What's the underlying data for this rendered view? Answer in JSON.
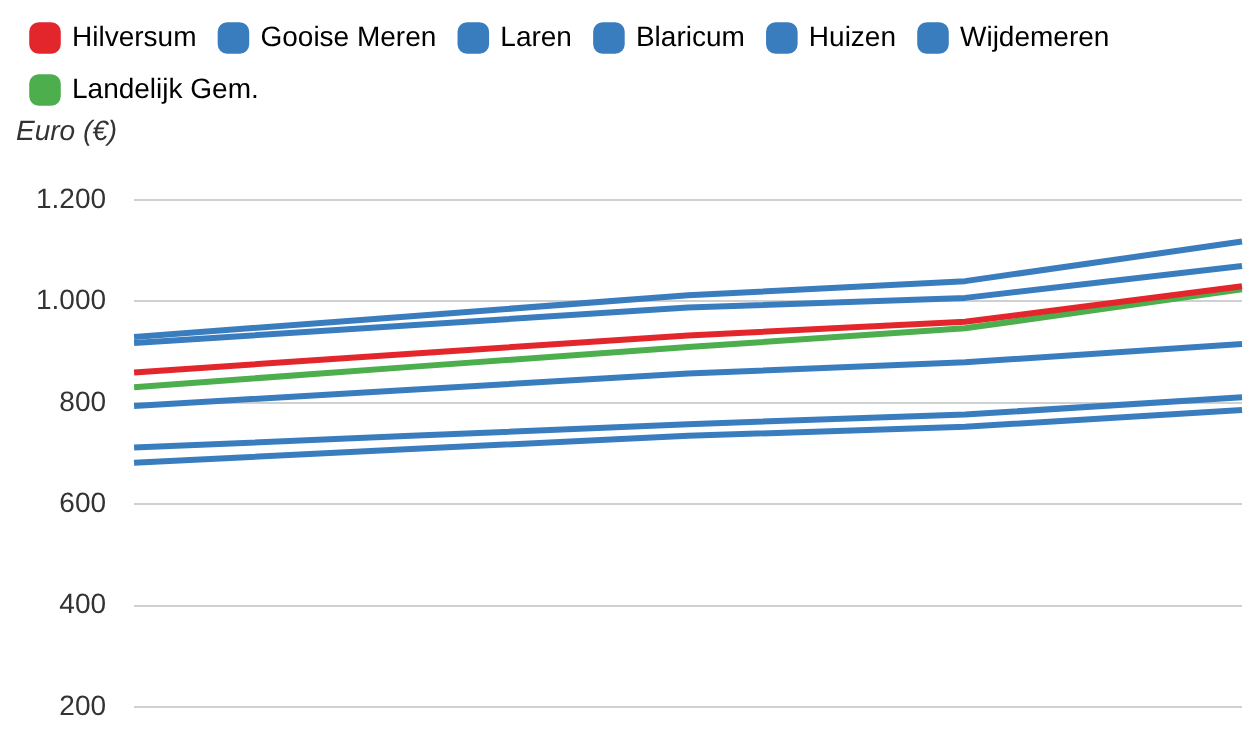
{
  "chart_data": {
    "type": "line",
    "ylabel": "Euro (€)",
    "categories": [
      null,
      null,
      null,
      null,
      null
    ],
    "series": [
      {
        "name": "Hilversum",
        "color": "#e3262b",
        "values": [
          860,
          897,
          933,
          960,
          1030
        ]
      },
      {
        "name": "Gooise Meren",
        "color": "#3a7dbf",
        "values": [
          930,
          971,
          1012,
          1040,
          1118
        ]
      },
      {
        "name": "Laren",
        "color": "#3a7dbf",
        "values": [
          918,
          953,
          988,
          1007,
          1070
        ]
      },
      {
        "name": "Blaricum",
        "color": "#3a7dbf",
        "values": [
          794,
          826,
          858,
          880,
          916
        ]
      },
      {
        "name": "Huizen",
        "color": "#3a7dbf",
        "values": [
          712,
          735,
          758,
          777,
          811
        ]
      },
      {
        "name": "Wijdemeren",
        "color": "#3a7dbf",
        "values": [
          682,
          709,
          735,
          753,
          786
        ]
      },
      {
        "name": "Landelijk Gem.",
        "color": "#4cae4c",
        "values": [
          831,
          871,
          910,
          947,
          1024
        ]
      }
    ],
    "ylim": [
      200,
      1200
    ],
    "yticks": [
      200,
      400,
      600,
      800,
      {
        "value": 1000,
        "label": "1.000"
      },
      {
        "value": 1200,
        "label": "1.200"
      }
    ],
    "grid": "y",
    "legend": "top left",
    "tick_labels": "y",
    "marker": "none",
    "line_style": "solid"
  }
}
